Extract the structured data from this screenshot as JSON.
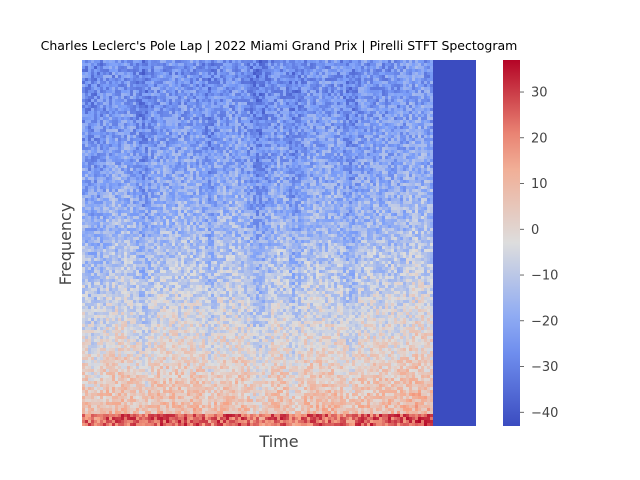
{
  "chart_data": {
    "type": "heatmap",
    "title": "Charles Leclerc's Pole Lap | 2022 Miami Grand Prix | Pirelli STFT Spectogram",
    "xlabel": "Time",
    "ylabel": "Frequency",
    "colormap": "coolwarm",
    "colorbar": {
      "range": [
        -43,
        37
      ],
      "ticks": [
        -40,
        -30,
        -20,
        -10,
        0,
        10,
        20,
        30
      ],
      "tick_labels": [
        "−40",
        "−30",
        "−20",
        "−10",
        "0",
        "10",
        "20",
        "30"
      ]
    },
    "x_ticks": [],
    "y_ticks": [],
    "grid": false,
    "notes": {
      "trailing_empty_region_fraction": 0.1,
      "low_frequency_band_level_db": 20,
      "high_frequency_level_db": -25
    }
  },
  "colors": {
    "cool_end": "#3b4cc0",
    "neutral": "#dddddd",
    "warm_end": "#b40426"
  }
}
